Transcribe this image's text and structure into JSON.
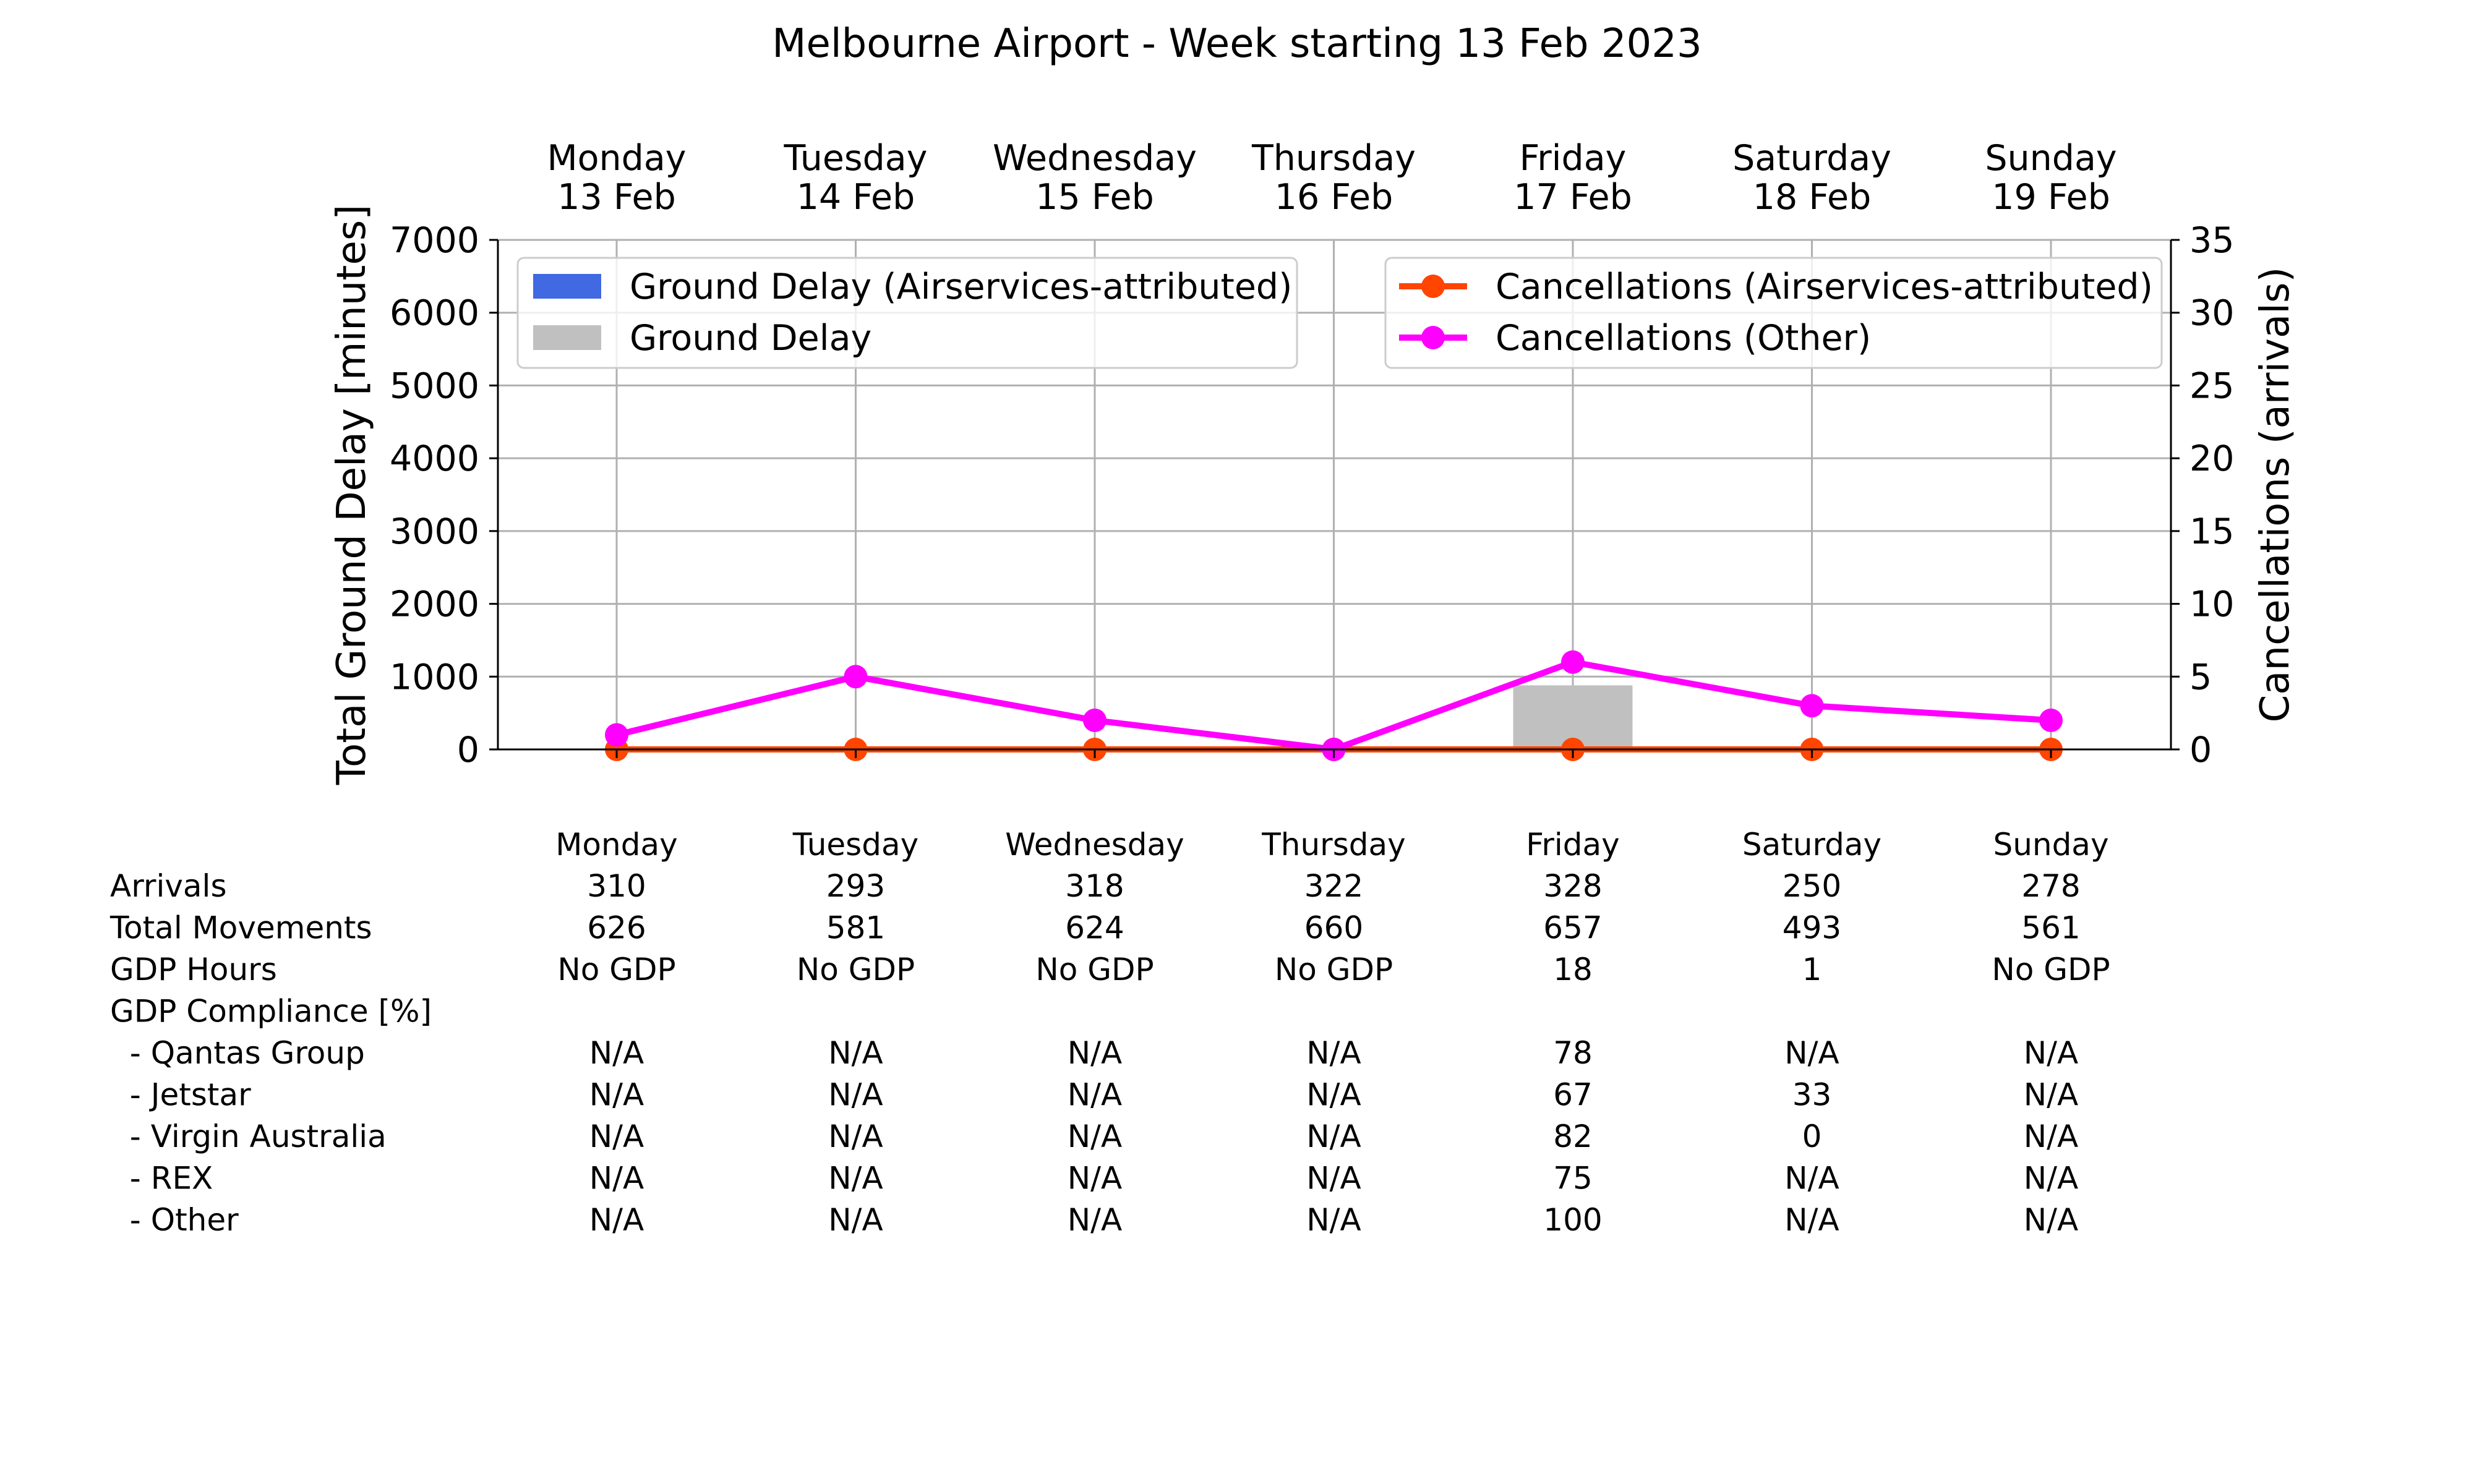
{
  "chart_data": {
    "type": "bar",
    "title": "Melbourne Airport - Week starting 13 Feb 2023",
    "days": [
      {
        "day": "Monday",
        "date": "13 Feb"
      },
      {
        "day": "Tuesday",
        "date": "14 Feb"
      },
      {
        "day": "Wednesday",
        "date": "15 Feb"
      },
      {
        "day": "Thursday",
        "date": "16 Feb"
      },
      {
        "day": "Friday",
        "date": "17 Feb"
      },
      {
        "day": "Saturday",
        "date": "18 Feb"
      },
      {
        "day": "Sunday",
        "date": "19 Feb"
      }
    ],
    "ylabel_left": "Total Ground Delay [minutes]",
    "ylabel_right": "Cancellations (arrivals)",
    "ylim_left": [
      0,
      7000
    ],
    "yticks_left": [
      "0",
      "1000",
      "2000",
      "3000",
      "4000",
      "5000",
      "6000",
      "7000"
    ],
    "ylim_right": [
      0,
      35
    ],
    "yticks_right": [
      "0",
      "5",
      "10",
      "15",
      "20",
      "25",
      "30",
      "35"
    ],
    "grid": true,
    "bar_series": [
      {
        "name": "Ground Delay (Airservices-attributed)",
        "color": "#4169e1",
        "values": [
          0,
          0,
          0,
          0,
          0,
          0,
          0
        ]
      },
      {
        "name": "Ground Delay",
        "color": "#c0c0c0",
        "values": [
          0,
          0,
          0,
          0,
          880,
          0,
          0
        ]
      }
    ],
    "line_series": [
      {
        "name": "Cancellations (Airservices-attributed)",
        "color": "#ff4500",
        "values": [
          0,
          0,
          0,
          0,
          0,
          0,
          0
        ]
      },
      {
        "name": "Cancellations (Other)",
        "color": "#ff00ff",
        "values": [
          1,
          5,
          2,
          0,
          6,
          3,
          2
        ]
      }
    ],
    "legend_left_position": "upper-left",
    "legend_right_position": "upper-right"
  },
  "table": {
    "header": [
      "Monday",
      "Tuesday",
      "Wednesday",
      "Thursday",
      "Friday",
      "Saturday",
      "Sunday"
    ],
    "rows": [
      {
        "label": "Arrivals",
        "values": [
          "310",
          "293",
          "318",
          "322",
          "328",
          "250",
          "278"
        ]
      },
      {
        "label": "Total Movements",
        "values": [
          "626",
          "581",
          "624",
          "660",
          "657",
          "493",
          "561"
        ]
      },
      {
        "label": "GDP Hours",
        "values": [
          "No GDP",
          "No GDP",
          "No GDP",
          "No GDP",
          "18",
          "1",
          "No GDP"
        ]
      },
      {
        "label": "GDP Compliance [%]",
        "values": [
          "",
          "",
          "",
          "",
          "",
          "",
          ""
        ]
      },
      {
        "label": "  - Qantas Group",
        "values": [
          "N/A",
          "N/A",
          "N/A",
          "N/A",
          "78",
          "N/A",
          "N/A"
        ]
      },
      {
        "label": "  - Jetstar",
        "values": [
          "N/A",
          "N/A",
          "N/A",
          "N/A",
          "67",
          "33",
          "N/A"
        ]
      },
      {
        "label": "  - Virgin Australia",
        "values": [
          "N/A",
          "N/A",
          "N/A",
          "N/A",
          "82",
          "0",
          "N/A"
        ]
      },
      {
        "label": "  - REX",
        "values": [
          "N/A",
          "N/A",
          "N/A",
          "N/A",
          "75",
          "N/A",
          "N/A"
        ]
      },
      {
        "label": "  - Other",
        "values": [
          "N/A",
          "N/A",
          "N/A",
          "N/A",
          "100",
          "N/A",
          "N/A"
        ]
      }
    ]
  }
}
